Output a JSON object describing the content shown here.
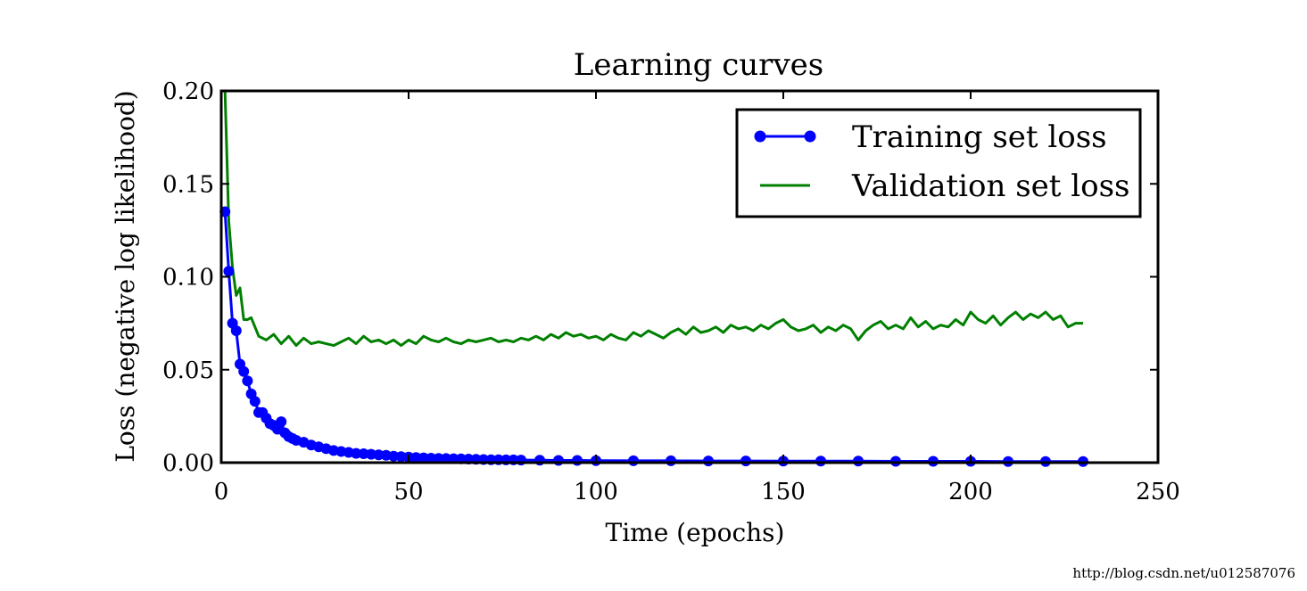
{
  "chart_data": {
    "type": "line",
    "title": "Learning curves",
    "xlabel": "Time (epochs)",
    "ylabel": "Loss (negative log likelihood)",
    "xlim": [
      0,
      250
    ],
    "ylim": [
      0,
      0.2
    ],
    "xticks": [
      "0",
      "50",
      "100",
      "150",
      "200",
      "250"
    ],
    "yticks": [
      "0.00",
      "0.05",
      "0.10",
      "0.15",
      "0.20"
    ],
    "grid": false,
    "legend_position": "top-right",
    "series": [
      {
        "name": "Training set loss",
        "color": "#0000ff",
        "marker": "circle",
        "x": [
          1,
          2,
          3,
          4,
          5,
          6,
          7,
          8,
          9,
          10,
          11,
          12,
          13,
          14,
          15,
          16,
          17,
          18,
          19,
          20,
          22,
          24,
          26,
          28,
          30,
          32,
          34,
          36,
          38,
          40,
          42,
          44,
          46,
          48,
          50,
          52,
          54,
          56,
          58,
          60,
          62,
          64,
          66,
          68,
          70,
          72,
          74,
          76,
          78,
          80,
          85,
          90,
          95,
          100,
          110,
          120,
          130,
          140,
          150,
          160,
          170,
          180,
          190,
          200,
          210,
          220,
          230
        ],
        "y": [
          0.135,
          0.103,
          0.075,
          0.071,
          0.053,
          0.049,
          0.044,
          0.037,
          0.033,
          0.027,
          0.027,
          0.024,
          0.021,
          0.02,
          0.018,
          0.022,
          0.016,
          0.014,
          0.013,
          0.012,
          0.011,
          0.0095,
          0.0085,
          0.0075,
          0.0065,
          0.006,
          0.0055,
          0.005,
          0.0048,
          0.0045,
          0.0042,
          0.004,
          0.0035,
          0.0032,
          0.003,
          0.0028,
          0.0026,
          0.0024,
          0.0023,
          0.0022,
          0.0021,
          0.002,
          0.0019,
          0.0018,
          0.0017,
          0.0016,
          0.0016,
          0.0015,
          0.0015,
          0.0014,
          0.0013,
          0.0012,
          0.0012,
          0.0011,
          0.001,
          0.001,
          0.0009,
          0.0009,
          0.0008,
          0.0008,
          0.0008,
          0.0007,
          0.0007,
          0.0007,
          0.0006,
          0.0006,
          0.0006
        ]
      },
      {
        "name": "Validation set loss",
        "color": "#008000",
        "marker": "none",
        "x": [
          1,
          2,
          3,
          4,
          5,
          6,
          7,
          8,
          9,
          10,
          12,
          14,
          16,
          18,
          20,
          22,
          24,
          26,
          28,
          30,
          32,
          34,
          36,
          38,
          40,
          42,
          44,
          46,
          48,
          50,
          52,
          54,
          56,
          58,
          60,
          62,
          64,
          66,
          68,
          70,
          72,
          74,
          76,
          78,
          80,
          82,
          84,
          86,
          88,
          90,
          92,
          94,
          96,
          98,
          100,
          102,
          104,
          106,
          108,
          110,
          112,
          114,
          116,
          118,
          120,
          122,
          124,
          126,
          128,
          130,
          132,
          134,
          136,
          138,
          140,
          142,
          144,
          146,
          148,
          150,
          152,
          154,
          156,
          158,
          160,
          162,
          164,
          166,
          168,
          170,
          172,
          174,
          176,
          178,
          180,
          182,
          184,
          186,
          188,
          190,
          192,
          194,
          196,
          198,
          200,
          202,
          204,
          206,
          208,
          210,
          212,
          214,
          216,
          218,
          220,
          222,
          224,
          226,
          228,
          230
        ],
        "y": [
          0.2,
          0.13,
          0.105,
          0.09,
          0.094,
          0.077,
          0.077,
          0.078,
          0.073,
          0.068,
          0.066,
          0.069,
          0.064,
          0.068,
          0.063,
          0.067,
          0.064,
          0.065,
          0.064,
          0.063,
          0.065,
          0.067,
          0.064,
          0.068,
          0.065,
          0.066,
          0.064,
          0.066,
          0.063,
          0.066,
          0.064,
          0.068,
          0.066,
          0.065,
          0.067,
          0.065,
          0.064,
          0.066,
          0.065,
          0.066,
          0.067,
          0.065,
          0.066,
          0.065,
          0.067,
          0.066,
          0.068,
          0.066,
          0.069,
          0.067,
          0.07,
          0.068,
          0.069,
          0.067,
          0.068,
          0.066,
          0.069,
          0.067,
          0.066,
          0.07,
          0.068,
          0.071,
          0.069,
          0.067,
          0.07,
          0.072,
          0.069,
          0.073,
          0.07,
          0.071,
          0.073,
          0.07,
          0.074,
          0.072,
          0.073,
          0.071,
          0.074,
          0.072,
          0.075,
          0.077,
          0.073,
          0.071,
          0.072,
          0.074,
          0.07,
          0.073,
          0.071,
          0.074,
          0.072,
          0.066,
          0.071,
          0.074,
          0.076,
          0.072,
          0.074,
          0.072,
          0.078,
          0.073,
          0.076,
          0.072,
          0.074,
          0.073,
          0.077,
          0.074,
          0.081,
          0.077,
          0.075,
          0.079,
          0.074,
          0.078,
          0.081,
          0.077,
          0.08,
          0.078,
          0.081,
          0.077,
          0.079,
          0.073,
          0.075,
          0.075
        ]
      }
    ]
  },
  "watermark": "http://blog.csdn.net/u012587076"
}
